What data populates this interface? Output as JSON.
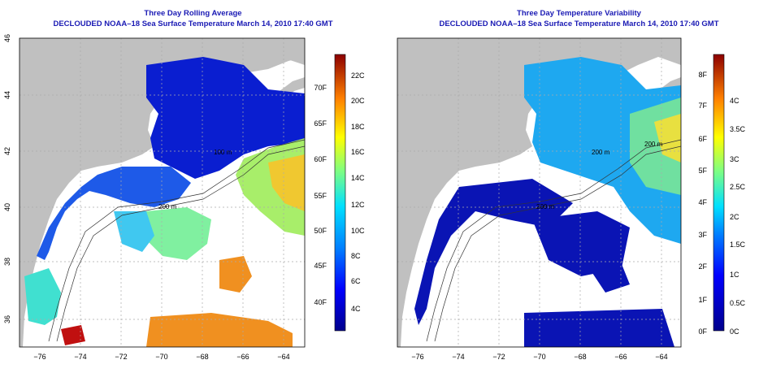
{
  "panels": [
    {
      "title": "Three Day Rolling Average",
      "subtitle": "DECLOUDED NOAA–18 Sea Surface Temperature March 14, 2010 17:40 GMT",
      "colorbar": {
        "fahrenheit_ticks": [
          "40F",
          "45F",
          "50F",
          "55F",
          "60F",
          "65F",
          "70F"
        ],
        "celsius_ticks": [
          "4C",
          "6C",
          "8C",
          "10C",
          "12C",
          "14C",
          "16C",
          "18C",
          "20C",
          "22C"
        ]
      }
    },
    {
      "title": "Three Day Temperature Variability",
      "subtitle": "DECLOUDED NOAA–18 Sea Surface Temperature March 14, 2010 17:40 GMT",
      "colorbar": {
        "fahrenheit_ticks": [
          "0F",
          "1F",
          "2F",
          "3F",
          "4F",
          "5F",
          "6F",
          "7F",
          "8F"
        ],
        "celsius_ticks": [
          "0C",
          "0.5C",
          "1C",
          "1.5C",
          "2C",
          "2.5C",
          "3C",
          "3.5C",
          "4C"
        ]
      }
    }
  ],
  "map": {
    "longitude_ticks": [
      "−76",
      "−74",
      "−72",
      "−70",
      "−68",
      "−66",
      "−64"
    ],
    "latitude_ticks": [
      "36",
      "38",
      "40",
      "42",
      "44",
      "46"
    ],
    "contour_labels": [
      "200 m",
      "100 m",
      "200 m",
      "200 m",
      "200 m"
    ],
    "colors": {
      "land": "#c0c0c0",
      "ocean_missing": "#ffffff"
    }
  }
}
